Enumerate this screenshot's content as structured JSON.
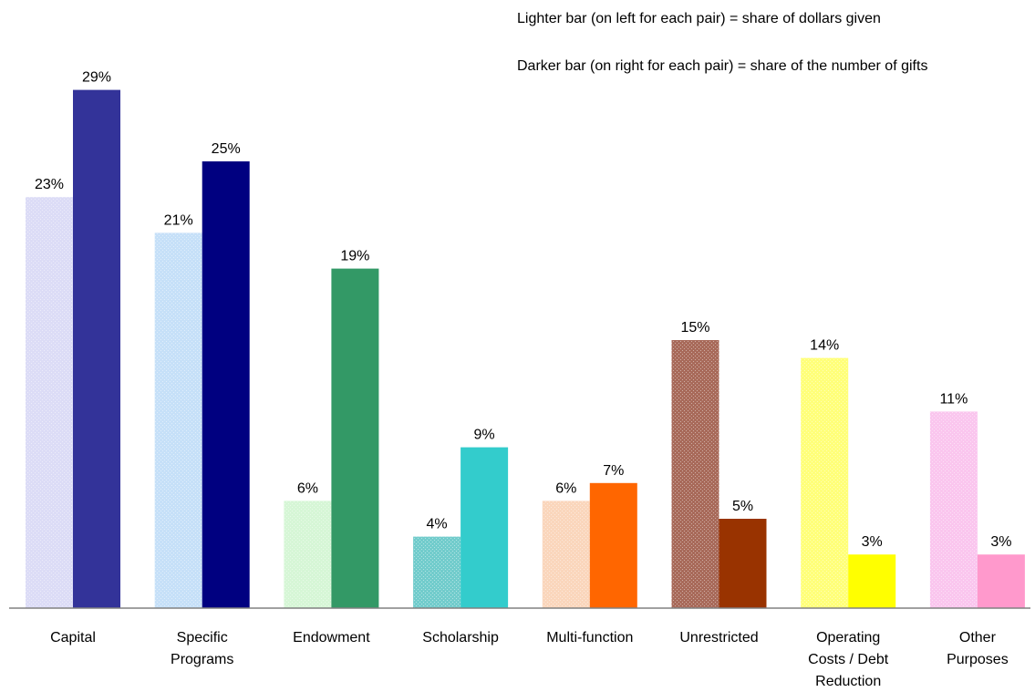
{
  "chart_data": {
    "type": "bar",
    "annotations": [
      "Lighter bar (on left for each pair) = share of dollars given",
      "Darker bar (on right for each pair) = share of the number of gifts"
    ],
    "categories": [
      [
        "Capital"
      ],
      [
        "Specific",
        "Programs"
      ],
      [
        "Endowment"
      ],
      [
        "Scholarship"
      ],
      [
        "Multi-function"
      ],
      [
        "Unrestricted"
      ],
      [
        "Operating",
        "Costs / Debt",
        "Reduction"
      ],
      [
        "Other",
        "Purposes"
      ]
    ],
    "series": [
      {
        "values": [
          23,
          21,
          6,
          4,
          6,
          15,
          14,
          11
        ],
        "labels": [
          "23%",
          "21%",
          "6%",
          "4%",
          "6%",
          "15%",
          "14%",
          "11%"
        ],
        "colors": [
          "#dcdcf6",
          "#c6e0f8",
          "#d6f6d6",
          "#72cccc",
          "#fad6bc",
          "#a86a5a",
          "#ffff7a",
          "#fac6ee"
        ]
      },
      {
        "values": [
          29,
          25,
          19,
          9,
          7,
          5,
          3,
          3
        ],
        "labels": [
          "29%",
          "25%",
          "19%",
          "9%",
          "7%",
          "5%",
          "3%",
          "3%"
        ],
        "colors": [
          "#333399",
          "#000080",
          "#339966",
          "#33cccc",
          "#ff6600",
          "#993300",
          "#ffff00",
          "#ff99cc"
        ]
      }
    ],
    "ylim": [
      0,
      30
    ],
    "grid": false,
    "legend": "none"
  }
}
